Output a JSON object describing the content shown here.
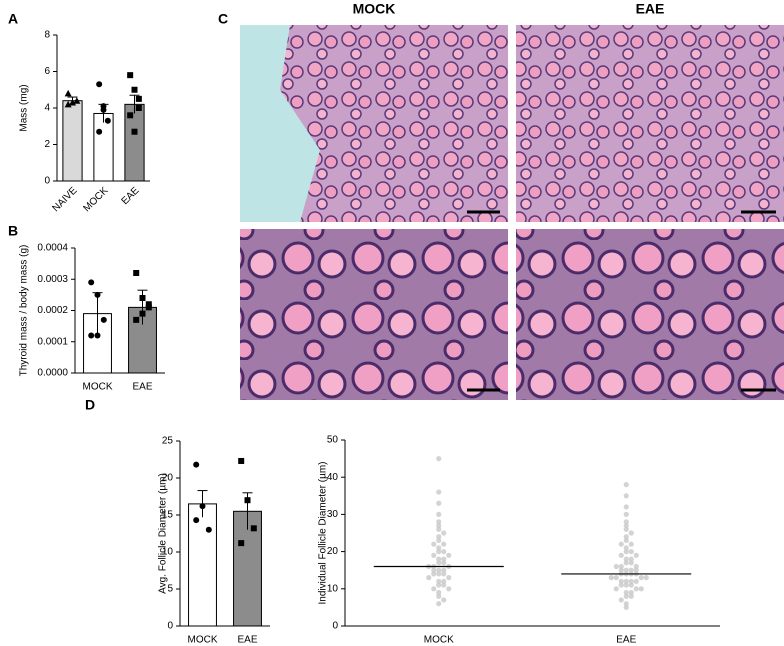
{
  "chart_data": [
    {
      "panel": "A",
      "type": "bar",
      "ylabel": "Mass (mg)",
      "categories": [
        "NAIVE",
        "MOCK",
        "EAE"
      ],
      "values": [
        4.4,
        3.7,
        4.2
      ],
      "errors": [
        0.2,
        0.5,
        0.5
      ],
      "colors": [
        "#d9d9d9",
        "#ffffff",
        "#8c8c8c"
      ],
      "markers": [
        "triangle",
        "circle",
        "square"
      ],
      "points": [
        [
          4.8,
          4.3,
          4.4,
          4.2
        ],
        [
          5.3,
          4.1,
          3.3,
          2.7,
          3.9
        ],
        [
          5.8,
          5.0,
          4.0,
          3.6,
          2.7,
          4.5
        ]
      ],
      "ylim": [
        0,
        8
      ],
      "yticks": [
        0,
        2,
        4,
        6,
        8
      ]
    },
    {
      "panel": "B",
      "type": "bar",
      "ylabel": "Thyroid mass / body mass  (g)",
      "categories": [
        "MOCK",
        "EAE"
      ],
      "values": [
        0.00019,
        0.00021
      ],
      "errors": [
        6.7e-05,
        5.5e-05
      ],
      "colors": [
        "#ffffff",
        "#8c8c8c"
      ],
      "markers": [
        "circle",
        "square"
      ],
      "points": [
        [
          0.00029,
          0.00025,
          0.00017,
          0.00012,
          0.00012
        ],
        [
          0.00032,
          0.00024,
          0.00022,
          0.00017,
          0.00019,
          0.00021
        ]
      ],
      "ylim": [
        0,
        0.0004
      ],
      "yticks": [
        {
          "value": 0,
          "label": "0.0000"
        },
        {
          "value": 0.0001,
          "label": "0.0001"
        },
        {
          "value": 0.0002,
          "label": "0.0002"
        },
        {
          "value": 0.0003,
          "label": "0.0003"
        },
        {
          "value": 0.0004,
          "label": "0.0004"
        }
      ]
    },
    {
      "panel": "D",
      "type": "bar",
      "ylabel": "Avg. Follicle Diameter (µm)",
      "categories": [
        "MOCK",
        "EAE"
      ],
      "values": [
        16.5,
        15.5
      ],
      "errors": [
        1.8,
        2.5
      ],
      "colors": [
        "#ffffff",
        "#8c8c8c"
      ],
      "markers": [
        "circle",
        "square"
      ],
      "points": [
        [
          21.8,
          16.2,
          13.0,
          14.3
        ],
        [
          22.3,
          17.0,
          13.2,
          11.2
        ]
      ],
      "ylim": [
        0,
        25
      ],
      "yticks": [
        0,
        5,
        10,
        15,
        20,
        25
      ]
    },
    {
      "type": "strip",
      "ylabel": "Individual Follicle Diameter (µm)",
      "categories": [
        "MOCK",
        "EAE"
      ],
      "medians": [
        16,
        14
      ],
      "color": "#c8c8c8",
      "points": [
        [
          45,
          36,
          33,
          30,
          28,
          27,
          26,
          25,
          24,
          23,
          22,
          22,
          21,
          20,
          20,
          19,
          19,
          18,
          18,
          17,
          17,
          16,
          16,
          16,
          15,
          15,
          15,
          14,
          14,
          14,
          13,
          13,
          12,
          12,
          11,
          11,
          10,
          10,
          9,
          8,
          7,
          6
        ],
        [
          38,
          35,
          32,
          30,
          28,
          27,
          26,
          25,
          24,
          23,
          22,
          22,
          21,
          20,
          20,
          19,
          19,
          18,
          18,
          17,
          17,
          16,
          16,
          16,
          15,
          15,
          15,
          15,
          14,
          14,
          14,
          14,
          13,
          13,
          13,
          13,
          12,
          12,
          12,
          12,
          11,
          11,
          11,
          10,
          10,
          10,
          9,
          9,
          8,
          8,
          7,
          6,
          5
        ]
      ],
      "ylim": [
        0,
        50
      ],
      "yticks": [
        0,
        10,
        20,
        30,
        40,
        50
      ]
    }
  ],
  "panel_c": {
    "panel": "C",
    "columns": [
      "MOCK",
      "EAE"
    ]
  }
}
